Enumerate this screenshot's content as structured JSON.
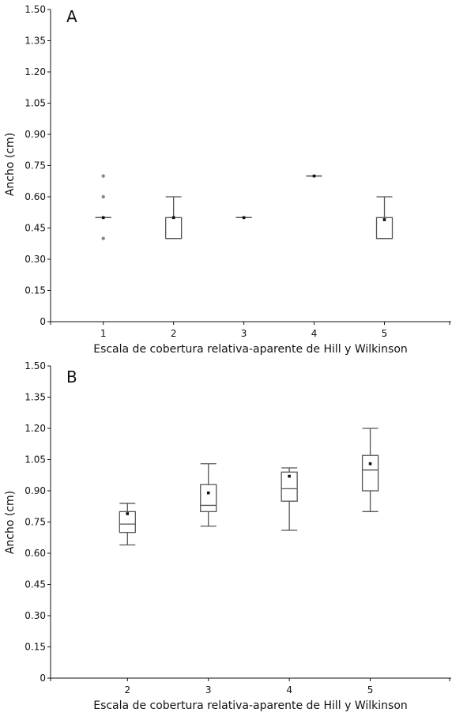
{
  "chart_data": [
    {
      "type": "boxplot",
      "panel_label": "A",
      "xlabel": "Escala de cobertura relativa-aparente de Hill y Wilkinson",
      "ylabel": "Ancho (cm)",
      "ylim": [
        0,
        1.5
      ],
      "y_ticks": [
        "0",
        "0.15",
        "0.30",
        "0.45",
        "0.60",
        "0.75",
        "0.90",
        "1.05",
        "1.20",
        "1.35",
        "1.50"
      ],
      "x_range": [
        0.25,
        5.95
      ],
      "categories": [
        "1",
        "2",
        "3",
        "4",
        "5"
      ],
      "boxes": [
        {
          "category": "1",
          "whisker_low": 0.5,
          "q1": 0.5,
          "median": 0.5,
          "q3": 0.5,
          "whisker_high": 0.5,
          "mean": 0.5,
          "outliers": [
            0.4,
            0.6,
            0.7
          ]
        },
        {
          "category": "2",
          "whisker_low": 0.4,
          "q1": 0.4,
          "median": 0.4,
          "q3": 0.5,
          "whisker_high": 0.6,
          "mean": 0.5,
          "outliers": []
        },
        {
          "category": "3",
          "whisker_low": 0.5,
          "q1": 0.5,
          "median": 0.5,
          "q3": 0.5,
          "whisker_high": 0.5,
          "mean": 0.5,
          "outliers": []
        },
        {
          "category": "4",
          "whisker_low": 0.7,
          "q1": 0.7,
          "median": 0.7,
          "q3": 0.7,
          "whisker_high": 0.7,
          "mean": 0.7,
          "outliers": []
        },
        {
          "category": "5",
          "whisker_low": 0.4,
          "q1": 0.4,
          "median": 0.4,
          "q3": 0.5,
          "whisker_high": 0.6,
          "mean": 0.49,
          "outliers": []
        }
      ],
      "grid": false
    },
    {
      "type": "boxplot",
      "panel_label": "B",
      "xlabel": "Escala de cobertura relativa-aparente de Hill y Wilkinson",
      "ylabel": "Ancho (cm)",
      "ylim": [
        0,
        1.5
      ],
      "y_ticks": [
        "0",
        "0.15",
        "0.30",
        "0.45",
        "0.60",
        "0.75",
        "0.90",
        "1.05",
        "1.20",
        "1.35",
        "1.50"
      ],
      "x_range": [
        1.05,
        6.0
      ],
      "categories": [
        "2",
        "3",
        "4",
        "5"
      ],
      "boxes": [
        {
          "category": "2",
          "whisker_low": 0.64,
          "q1": 0.7,
          "median": 0.74,
          "q3": 0.8,
          "whisker_high": 0.84,
          "mean": 0.79,
          "outliers": []
        },
        {
          "category": "3",
          "whisker_low": 0.73,
          "q1": 0.8,
          "median": 0.83,
          "q3": 0.93,
          "whisker_high": 1.03,
          "mean": 0.89,
          "outliers": []
        },
        {
          "category": "4",
          "whisker_low": 0.71,
          "q1": 0.85,
          "median": 0.91,
          "q3": 0.99,
          "whisker_high": 1.01,
          "mean": 0.97,
          "outliers": []
        },
        {
          "category": "5",
          "whisker_low": 0.8,
          "q1": 0.9,
          "median": 1.0,
          "q3": 1.07,
          "whisker_high": 1.2,
          "mean": 1.03,
          "outliers": []
        }
      ],
      "grid": false
    }
  ],
  "colors": {
    "axis": "#111111",
    "box": "#555555",
    "outlier": "#888888",
    "mean": "#111111"
  }
}
